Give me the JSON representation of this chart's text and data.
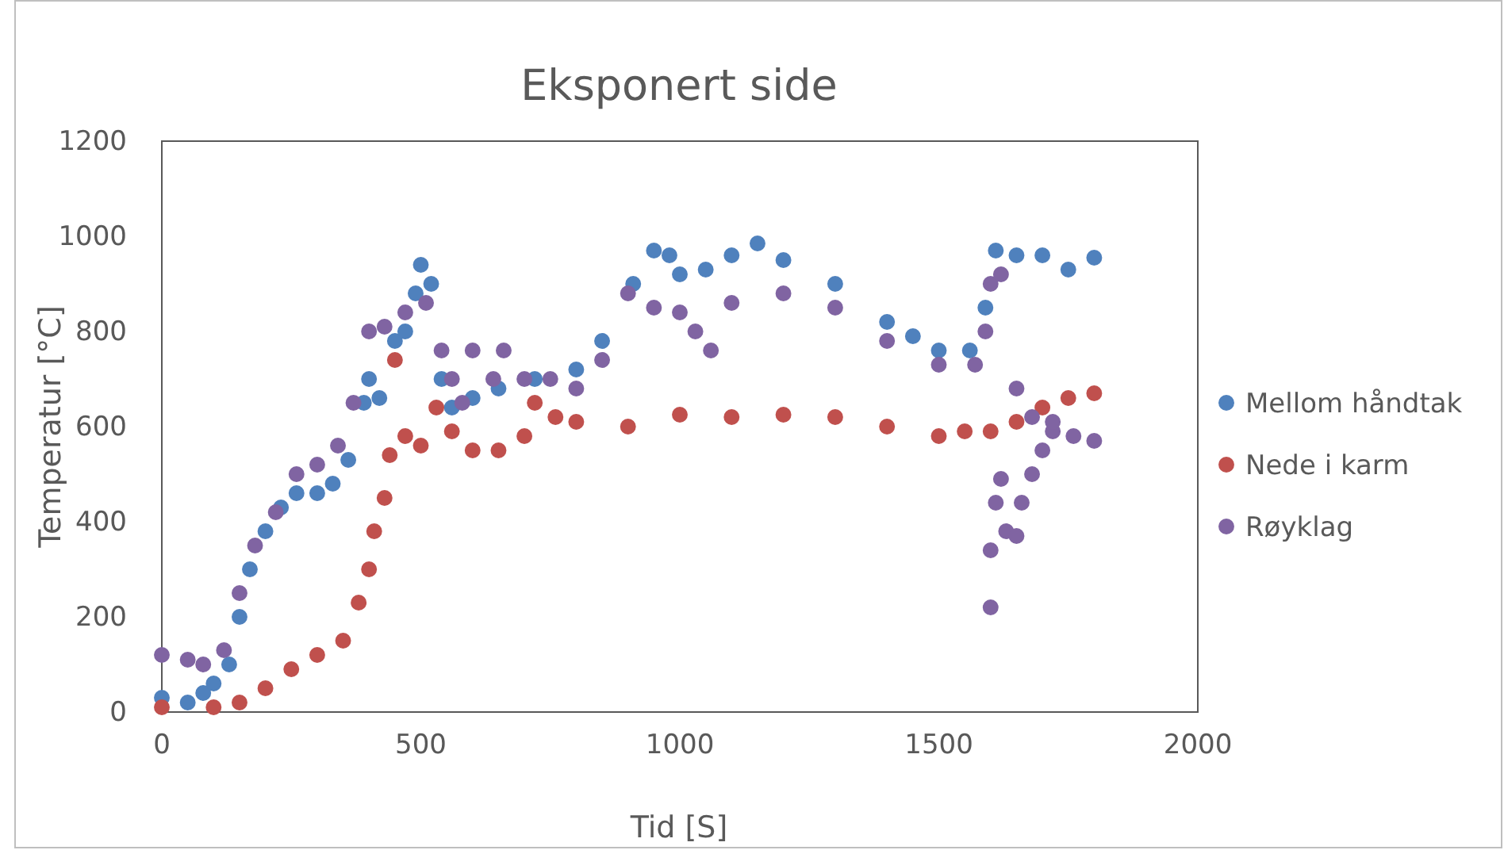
{
  "chart_data": {
    "type": "scatter",
    "title": "Eksponert side",
    "xlabel": "Tid [S]",
    "ylabel": "Temperatur [°C]",
    "xlim": [
      0,
      2000
    ],
    "xticks": [
      0,
      500,
      1000,
      1500,
      2000
    ],
    "ylim": [
      0,
      1200
    ],
    "yticks": [
      0,
      200,
      400,
      600,
      800,
      1000,
      1200
    ],
    "grid": false,
    "legend": "right",
    "marker": "circle",
    "series": [
      {
        "name": "Mellom håndtak",
        "color": "#4f81bd",
        "x": [
          0,
          50,
          80,
          100,
          130,
          150,
          170,
          200,
          230,
          260,
          300,
          330,
          360,
          390,
          400,
          420,
          450,
          470,
          490,
          500,
          520,
          540,
          560,
          600,
          650,
          720,
          800,
          850,
          910,
          950,
          980,
          1000,
          1050,
          1100,
          1150,
          1200,
          1300,
          1400,
          1450,
          1500,
          1560,
          1590,
          1610,
          1650,
          1700,
          1750,
          1800
        ],
        "values": [
          30,
          20,
          40,
          60,
          100,
          200,
          300,
          380,
          430,
          460,
          460,
          480,
          530,
          650,
          700,
          660,
          780,
          800,
          880,
          940,
          900,
          700,
          640,
          660,
          680,
          700,
          720,
          780,
          900,
          970,
          960,
          920,
          930,
          960,
          985,
          950,
          900,
          820,
          790,
          760,
          760,
          850,
          970,
          960,
          960,
          930,
          955
        ]
      },
      {
        "name": "Nede i karm",
        "color": "#c0504d",
        "x": [
          0,
          100,
          150,
          200,
          250,
          300,
          350,
          380,
          400,
          410,
          430,
          440,
          450,
          470,
          500,
          530,
          560,
          600,
          650,
          700,
          720,
          760,
          800,
          900,
          1000,
          1100,
          1200,
          1300,
          1400,
          1500,
          1550,
          1600,
          1650,
          1700,
          1750,
          1800
        ],
        "values": [
          10,
          10,
          20,
          50,
          90,
          120,
          150,
          230,
          300,
          380,
          450,
          540,
          740,
          580,
          560,
          640,
          590,
          550,
          550,
          580,
          650,
          620,
          610,
          600,
          625,
          620,
          625,
          620,
          600,
          580,
          590,
          590,
          610,
          640,
          660,
          670
        ]
      },
      {
        "name": "Røyklag",
        "color": "#8064a2",
        "x": [
          0,
          50,
          80,
          120,
          150,
          180,
          220,
          260,
          300,
          340,
          370,
          400,
          430,
          470,
          510,
          540,
          560,
          580,
          600,
          640,
          660,
          700,
          750,
          800,
          850,
          900,
          950,
          1000,
          1030,
          1060,
          1100,
          1200,
          1300,
          1400,
          1500,
          1570,
          1590,
          1600,
          1620,
          1600,
          1600,
          1610,
          1620,
          1630,
          1650,
          1660,
          1680,
          1700,
          1720,
          1650,
          1680,
          1720,
          1760,
          1800
        ],
        "values": [
          120,
          110,
          100,
          130,
          250,
          350,
          420,
          500,
          520,
          560,
          650,
          800,
          810,
          840,
          860,
          760,
          700,
          650,
          760,
          700,
          760,
          700,
          700,
          680,
          740,
          880,
          850,
          840,
          800,
          760,
          860,
          880,
          850,
          780,
          730,
          730,
          800,
          900,
          920,
          220,
          340,
          440,
          490,
          380,
          370,
          440,
          500,
          550,
          590,
          680,
          620,
          610,
          580,
          570
        ]
      }
    ]
  }
}
